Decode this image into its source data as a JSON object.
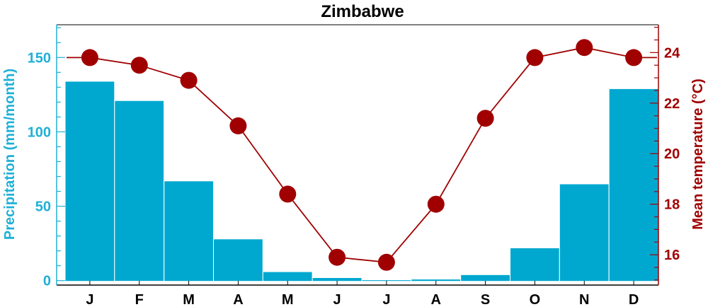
{
  "chart_data": {
    "type": "bar+line",
    "title": "Zimbabwe",
    "categories": [
      "J",
      "F",
      "M",
      "A",
      "M",
      "J",
      "J",
      "A",
      "S",
      "O",
      "N",
      "D"
    ],
    "left_axis": {
      "label": "Precipitation (mm/month)",
      "ylim": [
        -3,
        172
      ],
      "ticks": [
        0,
        50,
        100,
        150
      ]
    },
    "right_axis": {
      "label": "Mean temperature (°C)",
      "ylim": [
        14.8,
        25.1
      ],
      "ticks": [
        16,
        18,
        20,
        22,
        24
      ]
    },
    "series": [
      {
        "name": "Precipitation",
        "type": "bar",
        "axis": "left",
        "values": [
          134,
          121,
          67,
          28,
          6,
          2,
          0.5,
          1,
          4,
          22,
          65,
          129
        ]
      },
      {
        "name": "Mean temperature",
        "type": "line",
        "axis": "right",
        "values": [
          23.8,
          23.5,
          22.9,
          21.1,
          18.4,
          15.9,
          15.7,
          18.0,
          21.4,
          23.8,
          24.2,
          23.8
        ]
      }
    ],
    "colors": {
      "bars": "#00a8d0",
      "bar_stroke": "#ffffff",
      "line": "#a00000",
      "marker": "#a00000",
      "left_axis": "#1fb0d6",
      "right_axis": "#a00000",
      "frame": "#000000"
    },
    "grid": false
  }
}
